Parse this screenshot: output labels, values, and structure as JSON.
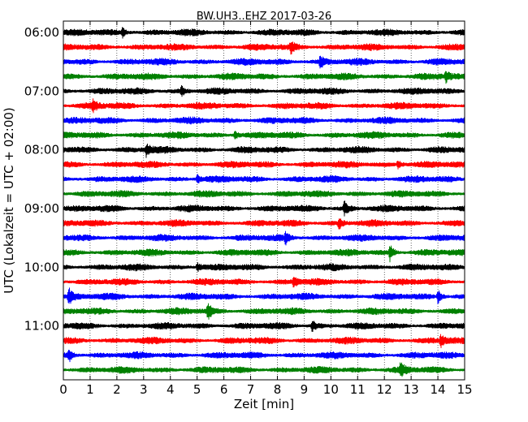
{
  "chart_data": {
    "type": "line",
    "title": "BW.UH3..EHZ 2017-03-26",
    "xlabel": "Zeit  [min]",
    "ylabel": "UTC (Lokalzeit = UTC + 02:00)",
    "xlim": [
      0,
      15
    ],
    "x_ticks": [
      0,
      1,
      2,
      3,
      4,
      5,
      6,
      7,
      8,
      9,
      10,
      11,
      12,
      13,
      14,
      15
    ],
    "x_tick_labels": [
      "0",
      "1",
      "2",
      "3",
      "4",
      "5",
      "6",
      "7",
      "8",
      "9",
      "10",
      "11",
      "12",
      "13",
      "14",
      "15"
    ],
    "y_tick_labels": [
      "06:00",
      "07:00",
      "08:00",
      "09:00",
      "10:00",
      "11:00"
    ],
    "trace_interval_min": 15,
    "start_time": "06:00",
    "trace_colors": [
      "#000000",
      "#ff0000",
      "#0000ff",
      "#008000"
    ],
    "traces_per_hour": 4,
    "grid": true,
    "events": [
      {
        "trace": 0,
        "x": 2.2,
        "amp": 1.3
      },
      {
        "trace": 1,
        "x": 8.5,
        "amp": 1.5
      },
      {
        "trace": 2,
        "x": 9.6,
        "amp": 1.6
      },
      {
        "trace": 3,
        "x": 14.3,
        "amp": 1.5
      },
      {
        "trace": 4,
        "x": 4.4,
        "amp": 1.2
      },
      {
        "trace": 5,
        "x": 1.1,
        "amp": 1.6
      },
      {
        "trace": 7,
        "x": 6.4,
        "amp": 1.2
      },
      {
        "trace": 8,
        "x": 3.1,
        "amp": 1.7
      },
      {
        "trace": 9,
        "x": 12.5,
        "amp": 1.3
      },
      {
        "trace": 10,
        "x": 5.0,
        "amp": 1.2
      },
      {
        "trace": 12,
        "x": 10.5,
        "amp": 2.0
      },
      {
        "trace": 13,
        "x": 10.3,
        "amp": 1.4
      },
      {
        "trace": 14,
        "x": 8.3,
        "amp": 1.4
      },
      {
        "trace": 15,
        "x": 12.2,
        "amp": 2.2
      },
      {
        "trace": 16,
        "x": 5.0,
        "amp": 1.3
      },
      {
        "trace": 17,
        "x": 8.6,
        "amp": 1.5
      },
      {
        "trace": 18,
        "x": 0.2,
        "amp": 2.2
      },
      {
        "trace": 18,
        "x": 14.0,
        "amp": 1.8
      },
      {
        "trace": 19,
        "x": 5.4,
        "amp": 2.3
      },
      {
        "trace": 20,
        "x": 9.3,
        "amp": 1.4
      },
      {
        "trace": 21,
        "x": 14.1,
        "amp": 1.6
      },
      {
        "trace": 22,
        "x": 0.2,
        "amp": 1.8
      },
      {
        "trace": 23,
        "x": 12.6,
        "amp": 2.0
      }
    ]
  }
}
